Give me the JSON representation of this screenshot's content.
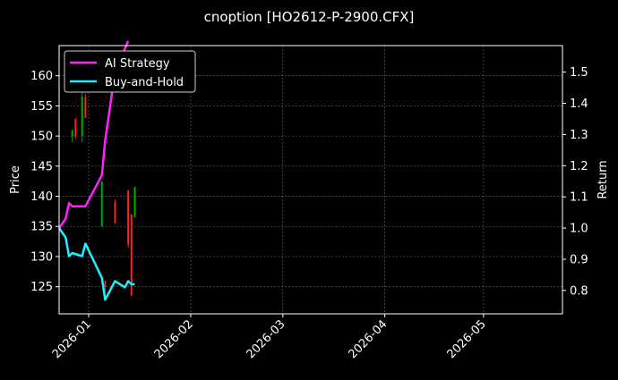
{
  "chart_data": {
    "type": "line",
    "title": "cnoption [HO2612-P-2900.CFX]",
    "xlabel": "",
    "ylabel": "Price",
    "y2label": "Return",
    "ylim": [
      120.5,
      165
    ],
    "y2lim": [
      0.725,
      1.585
    ],
    "x_range": [
      "2025-12-23",
      "2026-05-25"
    ],
    "x_ticks": [
      "2026-01",
      "2026-02",
      "2026-03",
      "2026-04",
      "2026-05"
    ],
    "y_ticks": [
      125,
      130,
      135,
      140,
      145,
      150,
      155,
      160
    ],
    "y2_ticks": [
      0.8,
      0.9,
      1.0,
      1.1,
      1.2,
      1.3,
      1.4,
      1.5
    ],
    "grid": true,
    "legend_position": "top-left",
    "colors": {
      "up": "#00aa00",
      "down": "#ff2020",
      "ai": "#ff22ff",
      "bh": "#22eeff",
      "background": "#000000"
    },
    "candles": [
      {
        "x": "2025-12-27",
        "open": 150.0,
        "close": 151.0,
        "high": 151.0,
        "low": 149.0
      },
      {
        "x": "2025-12-28",
        "open": 152.8,
        "close": 150.0,
        "high": 153.0,
        "low": 149.5
      },
      {
        "x": "2025-12-30",
        "open": 150.0,
        "close": 156.5,
        "high": 161.0,
        "low": 149.0
      },
      {
        "x": "2025-12-31",
        "open": 156.5,
        "close": 153.0,
        "high": 157.0,
        "low": 153.0
      },
      {
        "x": "2026-01-05",
        "open": 135.0,
        "close": 142.5,
        "high": 142.5,
        "low": 135.0
      },
      {
        "x": "2026-01-06",
        "open": 126.0,
        "close": 125.0,
        "high": 126.0,
        "low": 124.0
      },
      {
        "x": "2026-01-09",
        "open": 139.0,
        "close": 135.5,
        "high": 139.5,
        "low": 135.5
      },
      {
        "x": "2026-01-13",
        "open": 141.0,
        "close": 132.0,
        "high": 141.0,
        "low": 131.5
      },
      {
        "x": "2026-01-14",
        "open": 137.0,
        "close": 123.5,
        "high": 137.0,
        "low": 123.5
      },
      {
        "x": "2026-01-15",
        "open": 136.5,
        "close": 141.5,
        "high": 141.5,
        "low": 136.5
      }
    ],
    "series": [
      {
        "name": "AI Strategy",
        "x": [
          "2025-12-23",
          "2025-12-25",
          "2025-12-26",
          "2025-12-27",
          "2025-12-31",
          "2026-01-05",
          "2026-01-06",
          "2026-01-09",
          "2026-01-13"
        ],
        "values": [
          1.0,
          1.03,
          1.08,
          1.07,
          1.07,
          1.17,
          1.28,
          1.5,
          1.6
        ]
      },
      {
        "name": "Buy-and-Hold",
        "x": [
          "2025-12-23",
          "2025-12-25",
          "2025-12-26",
          "2025-12-27",
          "2025-12-30",
          "2025-12-31",
          "2026-01-05",
          "2026-01-06",
          "2026-01-09",
          "2026-01-12",
          "2026-01-13",
          "2026-01-14",
          "2026-01-15"
        ],
        "values": [
          1.0,
          0.97,
          0.91,
          0.92,
          0.91,
          0.95,
          0.84,
          0.77,
          0.83,
          0.81,
          0.83,
          0.82,
          0.82
        ]
      }
    ]
  }
}
